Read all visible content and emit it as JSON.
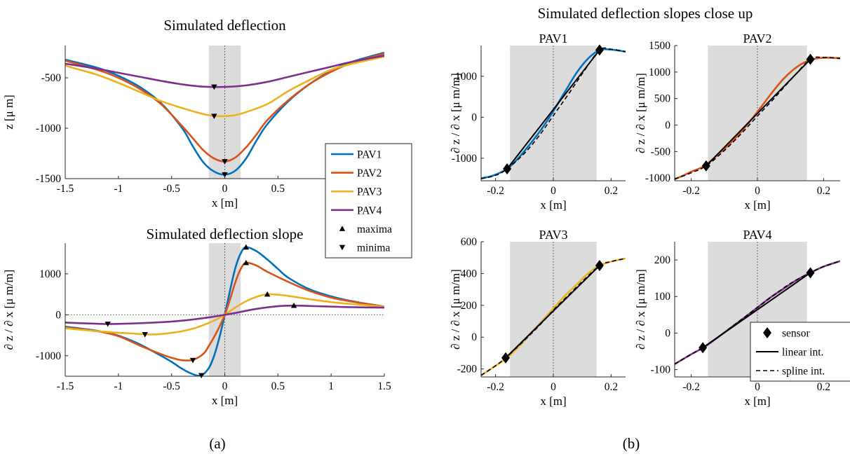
{
  "colors": {
    "PAV1": "#0072BD",
    "PAV2": "#D95319",
    "PAV3": "#EDB120",
    "PAV4": "#7E2F8E",
    "sensor_zone": "#dcdcdc",
    "black": "#000000"
  },
  "captions": {
    "a": "(a)",
    "b": "(b)"
  },
  "panel_b_title": "Simulated deflection slopes close up",
  "legend_a": {
    "entries": [
      "PAV1",
      "PAV2",
      "PAV3",
      "PAV4",
      "maxima",
      "minima"
    ],
    "placement": "right of panel (a), between the two plots"
  },
  "legend_b": {
    "entries": [
      "sensor",
      "linear int.",
      "spline int."
    ],
    "placement": "bottom-right of PAV4 plot"
  },
  "chart_data": [
    {
      "id": "deflection",
      "type": "line",
      "title": "Simulated deflection",
      "xlabel": "x [m]",
      "ylabel": "z [μ m]",
      "xlim": [
        -1.5,
        1.5
      ],
      "ylim": [
        -1500,
        -180
      ],
      "xticks": [
        -1.5,
        -1,
        -0.5,
        0,
        0.5
      ],
      "xtick_labels": [
        "-1.5",
        "-1",
        "-0.5",
        "0",
        "0.5"
      ],
      "yticks": [
        -1500,
        -1000,
        -500
      ],
      "ytick_labels": [
        "-1500",
        "-1000",
        "-500"
      ],
      "shaded_x": [
        -0.15,
        0.15
      ],
      "vline_x": 0,
      "series": [
        {
          "name": "PAV1",
          "x": [
            -1.5,
            -1.2,
            -1.0,
            -0.8,
            -0.6,
            -0.4,
            -0.3,
            -0.2,
            -0.1,
            0,
            0.1,
            0.2,
            0.3,
            0.4,
            0.6,
            0.8,
            1.0,
            1.2,
            1.5
          ],
          "y": [
            -320,
            -400,
            -480,
            -590,
            -750,
            -1000,
            -1180,
            -1340,
            -1430,
            -1460,
            -1420,
            -1300,
            -1120,
            -960,
            -730,
            -560,
            -430,
            -340,
            -250
          ]
        },
        {
          "name": "PAV2",
          "x": [
            -1.5,
            -1.2,
            -1.0,
            -0.8,
            -0.6,
            -0.4,
            -0.3,
            -0.2,
            -0.1,
            0,
            0.1,
            0.2,
            0.3,
            0.4,
            0.6,
            0.8,
            1.0,
            1.2,
            1.5
          ],
          "y": [
            -330,
            -420,
            -500,
            -610,
            -760,
            -980,
            -1100,
            -1220,
            -1300,
            -1330,
            -1290,
            -1190,
            -1060,
            -920,
            -720,
            -560,
            -440,
            -350,
            -260
          ]
        },
        {
          "name": "PAV3",
          "x": [
            -1.5,
            -1.2,
            -1.0,
            -0.8,
            -0.6,
            -0.4,
            -0.2,
            -0.1,
            0,
            0.1,
            0.2,
            0.4,
            0.6,
            0.8,
            1.0,
            1.2,
            1.5
          ],
          "y": [
            -380,
            -470,
            -550,
            -640,
            -730,
            -800,
            -860,
            -878,
            -880,
            -870,
            -840,
            -760,
            -630,
            -520,
            -420,
            -360,
            -290
          ]
        },
        {
          "name": "PAV4",
          "x": [
            -1.5,
            -1.2,
            -1.0,
            -0.8,
            -0.6,
            -0.4,
            -0.2,
            0,
            0.2,
            0.4,
            0.6,
            0.8,
            1.0,
            1.2,
            1.5
          ],
          "y": [
            -360,
            -410,
            -450,
            -490,
            -530,
            -565,
            -588,
            -590,
            -575,
            -540,
            -490,
            -440,
            -390,
            -340,
            -280
          ]
        }
      ],
      "maxima": [],
      "minima": [
        {
          "series": "PAV1",
          "x": 0,
          "y": -1460
        },
        {
          "series": "PAV2",
          "x": 0,
          "y": -1330
        },
        {
          "series": "PAV3",
          "x": -0.1,
          "y": -880
        },
        {
          "series": "PAV4",
          "x": -0.1,
          "y": -590
        }
      ]
    },
    {
      "id": "slope",
      "type": "line",
      "title": "Simulated deflection slope",
      "xlabel": "x [m]",
      "ylabel": "∂ z / ∂ x [μ m/m]",
      "xlim": [
        -1.5,
        1.5
      ],
      "ylim": [
        -1500,
        1750
      ],
      "xticks": [
        -1.5,
        -1,
        -0.5,
        0,
        0.5,
        1,
        1.5
      ],
      "xtick_labels": [
        "-1.5",
        "-1",
        "-0.5",
        "0",
        "0.5",
        "1",
        "1.5"
      ],
      "yticks": [
        -1000,
        0,
        1000
      ],
      "ytick_labels": [
        "-1000",
        "0",
        "1000"
      ],
      "shaded_x": [
        -0.15,
        0.15
      ],
      "vline_x": 0,
      "hline_y": 0,
      "series": [
        {
          "name": "PAV1",
          "x": [
            -1.5,
            -1.2,
            -1.0,
            -0.8,
            -0.6,
            -0.5,
            -0.4,
            -0.3,
            -0.22,
            -0.15,
            -0.1,
            -0.05,
            0,
            0.05,
            0.1,
            0.15,
            0.2,
            0.3,
            0.4,
            0.5,
            0.6,
            0.8,
            1.0,
            1.2,
            1.5
          ],
          "y": [
            -290,
            -390,
            -510,
            -720,
            -1000,
            -1150,
            -1320,
            -1450,
            -1480,
            -1300,
            -1000,
            -550,
            0,
            600,
            1150,
            1500,
            1650,
            1550,
            1350,
            1120,
            900,
            620,
            450,
            330,
            200
          ]
        },
        {
          "name": "PAV2",
          "x": [
            -1.5,
            -1.2,
            -1.0,
            -0.8,
            -0.6,
            -0.5,
            -0.4,
            -0.3,
            -0.2,
            -0.15,
            -0.1,
            -0.05,
            0,
            0.05,
            0.1,
            0.15,
            0.2,
            0.3,
            0.4,
            0.6,
            0.8,
            1.0,
            1.2,
            1.5
          ],
          "y": [
            -310,
            -400,
            -520,
            -750,
            -960,
            -1050,
            -1110,
            -1100,
            -950,
            -760,
            -540,
            -290,
            0,
            380,
            800,
            1120,
            1270,
            1200,
            1050,
            800,
            580,
            420,
            320,
            200
          ]
        },
        {
          "name": "PAV3",
          "x": [
            -1.5,
            -1.2,
            -1.0,
            -0.9,
            -0.8,
            -0.7,
            -0.6,
            -0.5,
            -0.4,
            -0.3,
            -0.2,
            -0.1,
            0,
            0.1,
            0.2,
            0.3,
            0.4,
            0.5,
            0.6,
            0.8,
            1.0,
            1.2,
            1.5
          ],
          "y": [
            -330,
            -400,
            -440,
            -450,
            -470,
            -480,
            -470,
            -440,
            -400,
            -340,
            -250,
            -140,
            0,
            180,
            330,
            440,
            500,
            490,
            460,
            380,
            310,
            260,
            200
          ]
        },
        {
          "name": "PAV4",
          "x": [
            -1.5,
            -1.3,
            -1.1,
            -0.9,
            -0.7,
            -0.5,
            -0.3,
            -0.1,
            0,
            0.1,
            0.3,
            0.5,
            0.65,
            0.8,
            1.0,
            1.2,
            1.5
          ],
          "y": [
            -190,
            -210,
            -225,
            -215,
            -195,
            -165,
            -115,
            -45,
            0,
            45,
            145,
            210,
            225,
            215,
            200,
            185,
            175
          ]
        }
      ],
      "maxima": [
        {
          "series": "PAV1",
          "x": 0.2,
          "y": 1650
        },
        {
          "series": "PAV2",
          "x": 0.2,
          "y": 1270
        },
        {
          "series": "PAV3",
          "x": 0.4,
          "y": 500
        },
        {
          "series": "PAV4",
          "x": 0.65,
          "y": 225
        }
      ],
      "minima": [
        {
          "series": "PAV1",
          "x": -0.22,
          "y": -1480
        },
        {
          "series": "PAV2",
          "x": -0.3,
          "y": -1110
        },
        {
          "series": "PAV3",
          "x": -0.75,
          "y": -480
        },
        {
          "series": "PAV4",
          "x": -1.1,
          "y": -225
        }
      ]
    },
    {
      "id": "pav1",
      "type": "line",
      "title": "PAV1",
      "xlabel": "x [m]",
      "ylabel": "∂ z / ∂ x [μ m/m]",
      "xlim": [
        -0.25,
        0.25
      ],
      "ylim": [
        -1550,
        1750
      ],
      "xticks": [
        -0.2,
        0,
        0.2
      ],
      "xtick_labels": [
        "-0.2",
        "0",
        "0.2"
      ],
      "yticks": [
        -1000,
        0,
        1000
      ],
      "ytick_labels": [
        "-1000",
        "0",
        "1000"
      ],
      "shaded_x": [
        -0.15,
        0.15
      ],
      "vline_x": 0,
      "series": [
        {
          "name": "PAV1",
          "x": [
            -0.25,
            -0.22,
            -0.2,
            -0.16,
            -0.12,
            -0.08,
            -0.04,
            0,
            0.04,
            0.08,
            0.12,
            0.16,
            0.2,
            0.25
          ],
          "y": [
            -1490,
            -1450,
            -1400,
            -1260,
            -990,
            -650,
            -280,
            150,
            620,
            1080,
            1430,
            1640,
            1650,
            1600
          ]
        }
      ],
      "sensors": {
        "x": [
          -0.16,
          0.16
        ],
        "y": [
          -1260,
          1640
        ]
      },
      "linear": {
        "x": [
          -0.16,
          0.16
        ],
        "y": [
          -1260,
          1640
        ]
      },
      "spline": {
        "x": [
          -0.25,
          -0.2,
          -0.16,
          -0.1,
          -0.05,
          0,
          0.05,
          0.1,
          0.16,
          0.2,
          0.25
        ],
        "y": [
          -1500,
          -1420,
          -1260,
          -880,
          -460,
          40,
          540,
          1060,
          1640,
          1660,
          1600
        ]
      }
    },
    {
      "id": "pav2",
      "type": "line",
      "title": "PAV2",
      "xlabel": "x [m]",
      "ylabel": "∂ z / ∂ x [μ m/m]",
      "xlim": [
        -0.25,
        0.25
      ],
      "ylim": [
        -1050,
        1500
      ],
      "xticks": [
        -0.2,
        0,
        0.2
      ],
      "xtick_labels": [
        "-0.2",
        "0",
        "0.2"
      ],
      "yticks": [
        -1000,
        -500,
        0,
        500,
        1000,
        1500
      ],
      "ytick_labels": [
        "-1000",
        "-500",
        "0",
        "500",
        "1000",
        "1500"
      ],
      "shaded_x": [
        -0.15,
        0.15
      ],
      "vline_x": 0,
      "series": [
        {
          "name": "PAV2",
          "x": [
            -0.25,
            -0.22,
            -0.2,
            -0.16,
            -0.12,
            -0.08,
            -0.04,
            0,
            0.04,
            0.08,
            0.12,
            0.16,
            0.2,
            0.25
          ],
          "y": [
            -1020,
            -940,
            -880,
            -770,
            -560,
            -330,
            -60,
            250,
            580,
            880,
            1100,
            1230,
            1270,
            1260
          ]
        }
      ],
      "sensors": {
        "x": [
          -0.155,
          0.16
        ],
        "y": [
          -770,
          1240
        ]
      },
      "linear": {
        "x": [
          -0.155,
          0.16
        ],
        "y": [
          -770,
          1240
        ]
      },
      "spline": {
        "x": [
          -0.25,
          -0.2,
          -0.155,
          -0.1,
          -0.05,
          0,
          0.05,
          0.1,
          0.16,
          0.2,
          0.25
        ],
        "y": [
          -1020,
          -900,
          -770,
          -480,
          -170,
          170,
          500,
          850,
          1240,
          1275,
          1260
        ]
      }
    },
    {
      "id": "pav3",
      "type": "line",
      "title": "PAV3",
      "xlabel": "x [m]",
      "ylabel": "∂ z / ∂ x [μ m/m]",
      "xlim": [
        -0.25,
        0.25
      ],
      "ylim": [
        -250,
        600
      ],
      "xticks": [
        -0.2,
        0,
        0.2
      ],
      "xtick_labels": [
        "-0.2",
        "0",
        "0.2"
      ],
      "yticks": [
        -200,
        0,
        200,
        400,
        600
      ],
      "ytick_labels": [
        "-200",
        "0",
        "200",
        "400",
        "600"
      ],
      "shaded_x": [
        -0.15,
        0.15
      ],
      "vline_x": 0,
      "series": [
        {
          "name": "PAV3",
          "x": [
            -0.25,
            -0.2,
            -0.16,
            -0.12,
            -0.08,
            -0.04,
            0,
            0.04,
            0.08,
            0.12,
            0.16,
            0.2,
            0.25
          ],
          "y": [
            -240,
            -180,
            -130,
            -60,
            20,
            100,
            180,
            260,
            330,
            400,
            450,
            475,
            495
          ]
        }
      ],
      "sensors": {
        "x": [
          -0.165,
          0.16
        ],
        "y": [
          -130,
          450
        ]
      },
      "linear": {
        "x": [
          -0.165,
          0.16
        ],
        "y": [
          -130,
          450
        ]
      },
      "spline": {
        "x": [
          -0.25,
          -0.2,
          -0.165,
          -0.1,
          -0.05,
          0,
          0.05,
          0.1,
          0.16,
          0.2,
          0.25
        ],
        "y": [
          -240,
          -180,
          -130,
          -20,
          70,
          170,
          260,
          350,
          450,
          475,
          495
        ]
      }
    },
    {
      "id": "pav4",
      "type": "line",
      "title": "PAV4",
      "xlabel": "x [m]",
      "ylabel": "∂ z / ∂ x [μ m/m]",
      "xlim": [
        -0.25,
        0.25
      ],
      "ylim": [
        -120,
        250
      ],
      "xticks": [
        -0.2,
        0,
        0.2
      ],
      "xtick_labels": [
        "-0.2",
        "0",
        "0.2"
      ],
      "yticks": [
        -100,
        0,
        100,
        200
      ],
      "ytick_labels": [
        "-100",
        "0",
        "100",
        "200"
      ],
      "shaded_x": [
        -0.15,
        0.15
      ],
      "vline_x": 0,
      "series": [
        {
          "name": "PAV4",
          "x": [
            -0.25,
            -0.2,
            -0.16,
            -0.12,
            -0.08,
            -0.04,
            0,
            0.04,
            0.08,
            0.12,
            0.16,
            0.2,
            0.25
          ],
          "y": [
            -85,
            -58,
            -38,
            -12,
            15,
            42,
            70,
            98,
            122,
            146,
            165,
            182,
            197
          ]
        }
      ],
      "sensors": {
        "x": [
          -0.165,
          0.16
        ],
        "y": [
          -40,
          165
        ]
      },
      "linear": {
        "x": [
          -0.165,
          0.16
        ],
        "y": [
          -40,
          165
        ]
      },
      "spline": {
        "x": [
          -0.25,
          -0.2,
          -0.165,
          -0.1,
          -0.05,
          0,
          0.05,
          0.1,
          0.16,
          0.2,
          0.25
        ],
        "y": [
          -85,
          -58,
          -40,
          2,
          36,
          70,
          104,
          136,
          165,
          182,
          197
        ]
      }
    }
  ]
}
